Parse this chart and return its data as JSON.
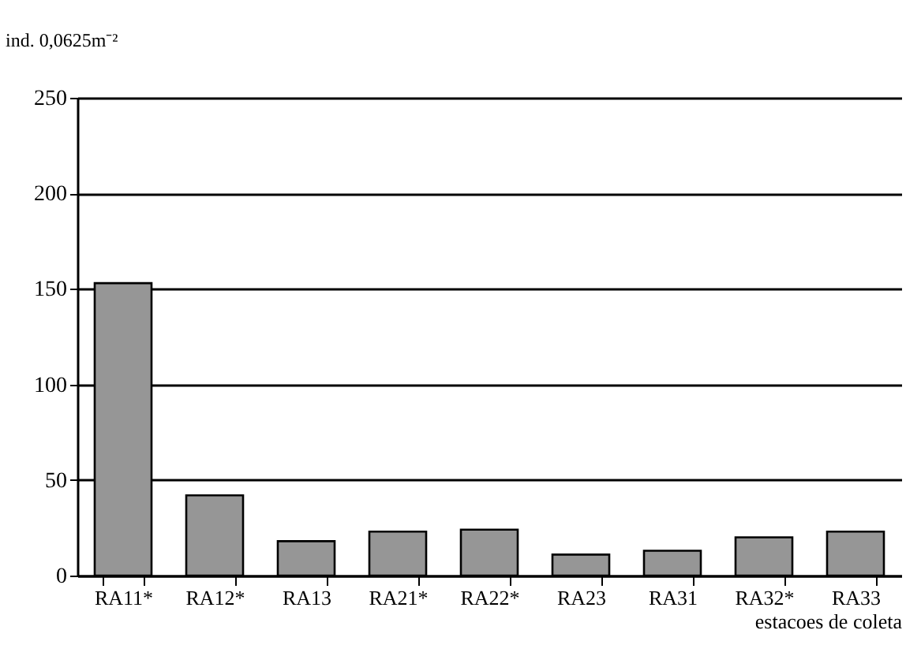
{
  "chart_data": {
    "type": "bar",
    "ylabel": "ind. 0,0625m⁻²",
    "xlabel": "estacoes de coleta",
    "categories": [
      "RA11*",
      "RA12*",
      "RA13",
      "RA21*",
      "RA22*",
      "RA23",
      "RA31",
      "RA32*",
      "RA33"
    ],
    "values": [
      153,
      42,
      18,
      23,
      24,
      11,
      13,
      20,
      23
    ],
    "color": "#969696",
    "ylim": [
      0,
      250
    ],
    "yticks": [
      0,
      50,
      100,
      150,
      200,
      250
    ],
    "grid": "y"
  }
}
